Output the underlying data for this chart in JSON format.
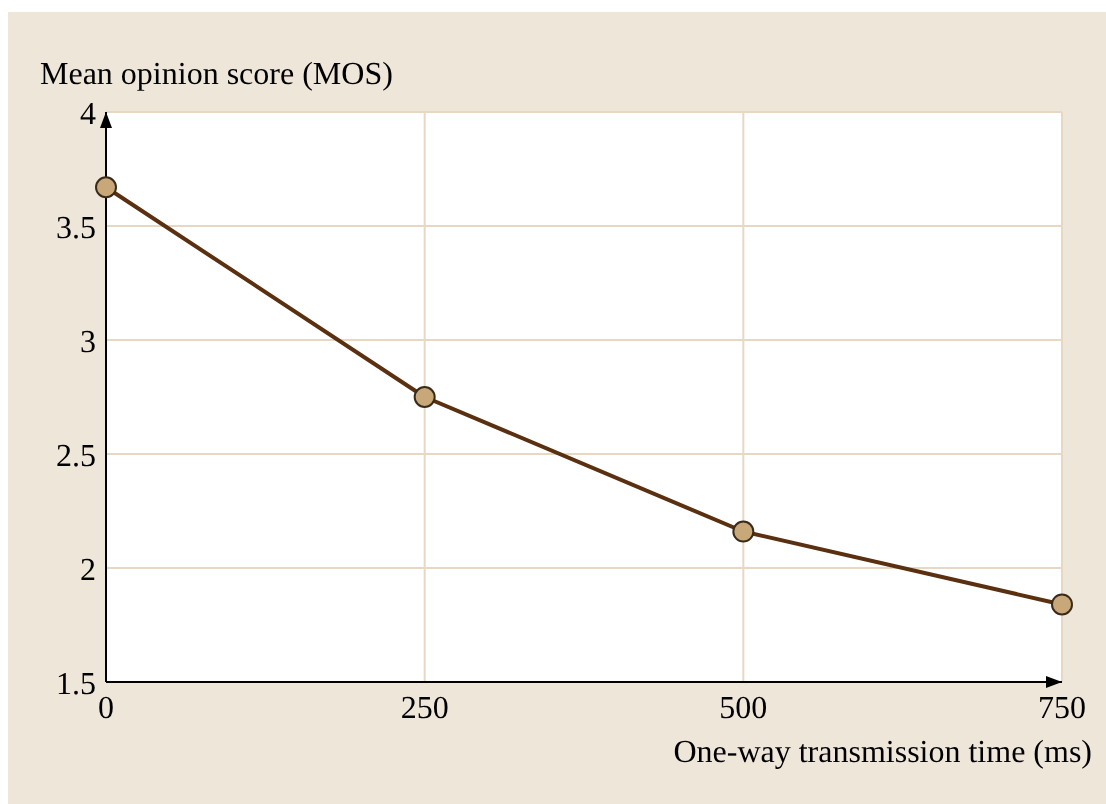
{
  "chart_data": {
    "type": "line",
    "xlabel": "One-way transmission time (ms)",
    "ylabel": "Mean opinion score (MOS)",
    "x": [
      0,
      250,
      500,
      750
    ],
    "series": [
      {
        "color": "#5a3010",
        "values": [
          3.67,
          2.75,
          2.16,
          1.84
        ]
      }
    ],
    "xlim": [
      0,
      750
    ],
    "xticks": [
      0,
      250,
      500,
      750
    ],
    "ylim": [
      1.5,
      4
    ],
    "yticks": [
      1.5,
      2,
      2.5,
      3,
      3.5,
      4
    ],
    "grid": true,
    "marker": "circle",
    "line_style": "solid"
  }
}
